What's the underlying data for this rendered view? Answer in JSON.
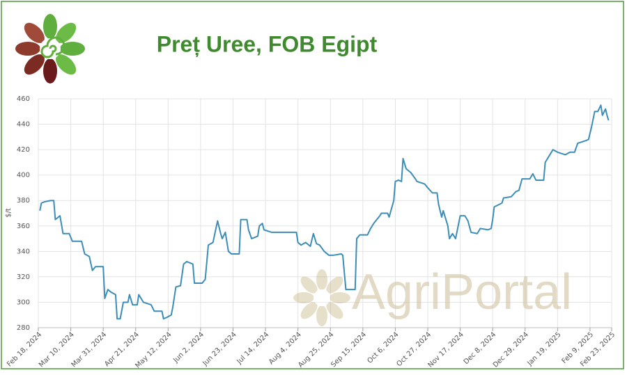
{
  "watermark": "AgriPortal",
  "chart_data": {
    "type": "line",
    "title": "Preț Uree, FOB Egipt",
    "y_label": "$/t",
    "color": "#3b8db8",
    "grid": true,
    "x": [
      "2024-02-19",
      "2024-02-20",
      "2024-02-22",
      "2024-02-26",
      "2024-02-28",
      "2024-02-29",
      "2024-03-03",
      "2024-03-05",
      "2024-03-09",
      "2024-03-11",
      "2024-03-17",
      "2024-03-19",
      "2024-03-22",
      "2024-03-24",
      "2024-03-26",
      "2024-03-31",
      "2024-04-01",
      "2024-04-03",
      "2024-04-05",
      "2024-04-08",
      "2024-04-09",
      "2024-04-11",
      "2024-04-13",
      "2024-04-16",
      "2024-04-17",
      "2024-04-19",
      "2024-04-22",
      "2024-04-23",
      "2024-04-26",
      "2024-05-01",
      "2024-05-03",
      "2024-05-08",
      "2024-05-09",
      "2024-05-11",
      "2024-05-14",
      "2024-05-15",
      "2024-05-17",
      "2024-05-20",
      "2024-05-22",
      "2024-05-24",
      "2024-05-28",
      "2024-05-29",
      "2024-06-03",
      "2024-06-05",
      "2024-06-07",
      "2024-06-10",
      "2024-06-13",
      "2024-06-15",
      "2024-06-16",
      "2024-06-18",
      "2024-06-20",
      "2024-06-22",
      "2024-06-27",
      "2024-06-28",
      "2024-07-02",
      "2024-07-03",
      "2024-07-05",
      "2024-07-09",
      "2024-07-10",
      "2024-07-12",
      "2024-07-13",
      "2024-07-18",
      "2024-08-03",
      "2024-08-04",
      "2024-08-06",
      "2024-08-09",
      "2024-08-12",
      "2024-08-14",
      "2024-08-16",
      "2024-08-18",
      "2024-08-21",
      "2024-08-24",
      "2024-08-27",
      "2024-09-01",
      "2024-09-02",
      "2024-09-04",
      "2024-09-10",
      "2024-09-11",
      "2024-09-13",
      "2024-09-18",
      "2024-09-20",
      "2024-09-22",
      "2024-09-26",
      "2024-09-27",
      "2024-10-01",
      "2024-10-02",
      "2024-10-05",
      "2024-10-06",
      "2024-10-08",
      "2024-10-10",
      "2024-10-11",
      "2024-10-13",
      "2024-10-16",
      "2024-10-19",
      "2024-10-20",
      "2024-10-25",
      "2024-10-27",
      "2024-10-30",
      "2024-11-02",
      "2024-11-03",
      "2024-11-05",
      "2024-11-06",
      "2024-11-08",
      "2024-11-09",
      "2024-11-10",
      "2024-11-12",
      "2024-11-14",
      "2024-11-17",
      "2024-11-20",
      "2024-11-22",
      "2024-11-24",
      "2024-11-28",
      "2024-11-30",
      "2024-12-05",
      "2024-12-07",
      "2024-12-08",
      "2024-12-09",
      "2024-12-14",
      "2024-12-15",
      "2024-12-20",
      "2024-12-23",
      "2024-12-25",
      "2024-12-27",
      "2025-01-01",
      "2025-01-03",
      "2025-01-05",
      "2025-01-10",
      "2025-01-11",
      "2025-01-14",
      "2025-01-16",
      "2025-01-19",
      "2025-01-24",
      "2025-01-27",
      "2025-01-30",
      "2025-02-01",
      "2025-02-06",
      "2025-02-08",
      "2025-02-10",
      "2025-02-12",
      "2025-02-14",
      "2025-02-16",
      "2025-02-17",
      "2025-02-19",
      "2025-02-20",
      "2025-02-21"
    ],
    "values": [
      372,
      378,
      379,
      380,
      380,
      365,
      368,
      354,
      354,
      348,
      348,
      338,
      336,
      325,
      328,
      328,
      303,
      310,
      308,
      306,
      287,
      287,
      300,
      300,
      306,
      298,
      298,
      306,
      300,
      298,
      293,
      293,
      287,
      288,
      290,
      296,
      312,
      313,
      330,
      332,
      330,
      315,
      315,
      318,
      345,
      347,
      364,
      354,
      350,
      355,
      340,
      338,
      338,
      365,
      365,
      357,
      350,
      352,
      360,
      362,
      357,
      355,
      355,
      347,
      345,
      347,
      344,
      354,
      346,
      345,
      340,
      337,
      337,
      338,
      337,
      310,
      310,
      350,
      353,
      353,
      358,
      362,
      368,
      370,
      370,
      367,
      380,
      395,
      396,
      395,
      413,
      405,
      402,
      397,
      395,
      393,
      390,
      386,
      386,
      377,
      367,
      372,
      364,
      360,
      350,
      354,
      350,
      368,
      368,
      364,
      355,
      354,
      358,
      357,
      358,
      365,
      375,
      378,
      382,
      383,
      387,
      388,
      397,
      397,
      401,
      396,
      396,
      410,
      416,
      420,
      418,
      416,
      418,
      418,
      425,
      427,
      428,
      438,
      450,
      450,
      455,
      447,
      452,
      447,
      443
    ],
    "xlim": [
      "2024-02-18",
      "2025-02-23"
    ],
    "xticks": [
      {
        "value": "2024-02-18",
        "label": "Feb 18, 2024"
      },
      {
        "value": "2024-03-10",
        "label": "Mar 10, 2024"
      },
      {
        "value": "2024-03-31",
        "label": "Mar 31, 2024"
      },
      {
        "value": "2024-04-21",
        "label": "Apr 21, 2024"
      },
      {
        "value": "2024-05-12",
        "label": "May 12, 2024"
      },
      {
        "value": "2024-06-02",
        "label": "Jun 2, 2024"
      },
      {
        "value": "2024-06-23",
        "label": "Jun 23, 2024"
      },
      {
        "value": "2024-07-14",
        "label": "Jul 14, 2024"
      },
      {
        "value": "2024-08-04",
        "label": "Aug 4, 2024"
      },
      {
        "value": "2024-08-25",
        "label": "Aug 25, 2024"
      },
      {
        "value": "2024-09-15",
        "label": "Sep 15, 2024"
      },
      {
        "value": "2024-10-06",
        "label": "Oct 6, 2024"
      },
      {
        "value": "2024-10-27",
        "label": "Oct 27, 2024"
      },
      {
        "value": "2024-11-17",
        "label": "Nov 17, 2024"
      },
      {
        "value": "2024-12-08",
        "label": "Dec 8, 2024"
      },
      {
        "value": "2024-12-29",
        "label": "Dec 29, 2024"
      },
      {
        "value": "2025-01-19",
        "label": "Jan 19, 2025"
      },
      {
        "value": "2025-02-09",
        "label": "Feb 9, 2025"
      },
      {
        "value": "2025-02-23",
        "label": "Feb 23, 2025"
      }
    ],
    "ylim": [
      280,
      460
    ],
    "yticks": [
      280,
      300,
      320,
      340,
      360,
      380,
      400,
      420,
      440,
      460
    ]
  }
}
